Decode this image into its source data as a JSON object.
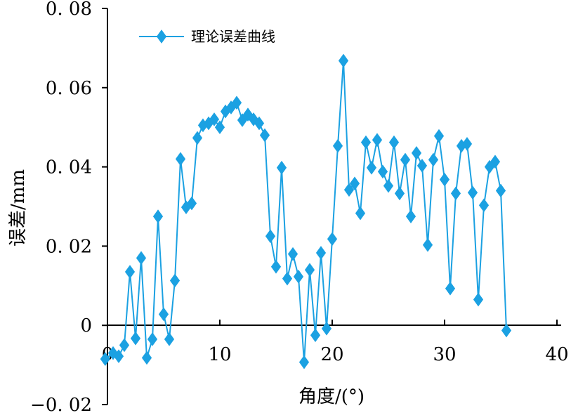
{
  "chart_data": {
    "type": "line",
    "title": "",
    "xlabel": "角度/(°)",
    "ylabel": "误差/mm",
    "xlim": [
      0,
      40
    ],
    "ylim": [
      -0.02,
      0.08
    ],
    "x_ticks": [
      0,
      10,
      20,
      30,
      40
    ],
    "y_ticks": [
      -0.02,
      0,
      0.02,
      0.04,
      0.06,
      0.08
    ],
    "x_tick_labels": [
      "0",
      "10",
      "20",
      "30",
      "40"
    ],
    "y_tick_labels": [
      "−0. 02",
      "0",
      "0. 02",
      "0. 04",
      "0. 06",
      "0. 08"
    ],
    "grid": false,
    "legend_position": "top-left",
    "colors": {
      "series": "#1BA1E2",
      "axis": "#000000",
      "background": "#ffffff"
    },
    "marker": "diamond",
    "series": [
      {
        "name": "理论误差曲线",
        "points": [
          [
            -0.2,
            -0.0085
          ],
          [
            0.5,
            -0.007
          ],
          [
            1.0,
            -0.0078
          ],
          [
            1.5,
            -0.005
          ],
          [
            2.0,
            0.0135
          ],
          [
            2.5,
            -0.0033
          ],
          [
            3.0,
            0.017
          ],
          [
            3.5,
            -0.0082
          ],
          [
            4.0,
            -0.0035
          ],
          [
            4.5,
            0.0275
          ],
          [
            5.0,
            0.0028
          ],
          [
            5.5,
            -0.0035
          ],
          [
            6.0,
            0.0113
          ],
          [
            6.5,
            0.042
          ],
          [
            7.0,
            0.0298
          ],
          [
            7.5,
            0.0308
          ],
          [
            8.0,
            0.0473
          ],
          [
            8.5,
            0.0505
          ],
          [
            9.0,
            0.051
          ],
          [
            9.5,
            0.052
          ],
          [
            10.0,
            0.05
          ],
          [
            10.5,
            0.054
          ],
          [
            11.0,
            0.055
          ],
          [
            11.5,
            0.0562
          ],
          [
            12.0,
            0.0518
          ],
          [
            12.5,
            0.0532
          ],
          [
            13.0,
            0.052
          ],
          [
            13.5,
            0.051
          ],
          [
            14.0,
            0.048
          ],
          [
            14.5,
            0.0225
          ],
          [
            15.0,
            0.0148
          ],
          [
            15.5,
            0.0398
          ],
          [
            16.0,
            0.0118
          ],
          [
            16.5,
            0.018
          ],
          [
            17.0,
            0.0123
          ],
          [
            17.5,
            -0.0093
          ],
          [
            18.0,
            0.014
          ],
          [
            18.5,
            -0.0025
          ],
          [
            19.0,
            0.0183
          ],
          [
            19.5,
            -0.0008
          ],
          [
            20.0,
            0.0218
          ],
          [
            20.5,
            0.0453
          ],
          [
            21.0,
            0.0668
          ],
          [
            21.5,
            0.0342
          ],
          [
            22.0,
            0.0358
          ],
          [
            22.5,
            0.0283
          ],
          [
            23.0,
            0.0462
          ],
          [
            23.5,
            0.0398
          ],
          [
            24.0,
            0.0468
          ],
          [
            24.5,
            0.0388
          ],
          [
            25.0,
            0.0352
          ],
          [
            25.5,
            0.0462
          ],
          [
            26.0,
            0.0333
          ],
          [
            26.5,
            0.0418
          ],
          [
            27.0,
            0.0275
          ],
          [
            27.5,
            0.0435
          ],
          [
            28.0,
            0.0403
          ],
          [
            28.5,
            0.0203
          ],
          [
            29.0,
            0.0418
          ],
          [
            29.5,
            0.0478
          ],
          [
            30.0,
            0.0368
          ],
          [
            30.5,
            0.0093
          ],
          [
            31.0,
            0.0333
          ],
          [
            31.5,
            0.0453
          ],
          [
            32.0,
            0.0458
          ],
          [
            32.5,
            0.0335
          ],
          [
            33.0,
            0.0065
          ],
          [
            33.5,
            0.0303
          ],
          [
            34.0,
            0.04
          ],
          [
            34.5,
            0.0413
          ],
          [
            35.0,
            0.034
          ],
          [
            35.5,
            -0.0013
          ]
        ]
      }
    ]
  }
}
